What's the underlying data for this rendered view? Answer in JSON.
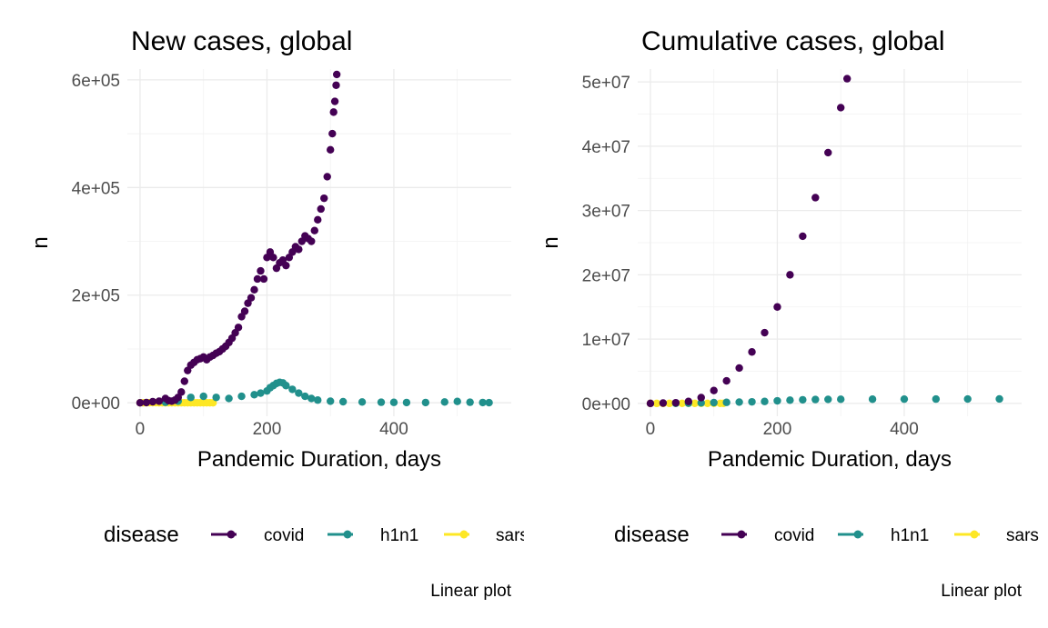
{
  "chart_data": [
    {
      "type": "scatter",
      "title": "New cases, global",
      "xlabel": "Pandemic Duration, days",
      "ylabel": "n",
      "xlim": [
        -20,
        585
      ],
      "ylim": [
        -25000,
        620000
      ],
      "x_ticks": [
        0,
        200,
        400
      ],
      "x_tick_labels": [
        "0",
        "200",
        "400"
      ],
      "y_ticks": [
        0,
        200000,
        400000,
        600000
      ],
      "y_tick_labels": [
        "0e+00",
        "2e+05",
        "4e+05",
        "6e+05"
      ],
      "grid": true,
      "legend": {
        "title": "disease",
        "position": "bottom"
      },
      "caption": "Linear plot",
      "series": [
        {
          "name": "covid",
          "color": "#440154",
          "x": [
            0,
            10,
            20,
            30,
            40,
            45,
            50,
            55,
            60,
            65,
            70,
            75,
            80,
            85,
            90,
            95,
            100,
            105,
            110,
            115,
            120,
            125,
            130,
            135,
            140,
            145,
            150,
            155,
            160,
            165,
            170,
            175,
            180,
            185,
            190,
            195,
            200,
            205,
            210,
            215,
            220,
            225,
            230,
            235,
            240,
            245,
            250,
            255,
            260,
            265,
            270,
            275,
            280,
            285,
            290,
            295,
            300,
            303,
            305,
            307,
            309,
            310
          ],
          "y": [
            0,
            500,
            2000,
            3000,
            8000,
            4000,
            3000,
            5000,
            10000,
            20000,
            40000,
            60000,
            70000,
            75000,
            80000,
            82000,
            85000,
            80000,
            85000,
            88000,
            92000,
            95000,
            100000,
            105000,
            112000,
            120000,
            130000,
            140000,
            160000,
            170000,
            185000,
            195000,
            210000,
            230000,
            245000,
            230000,
            270000,
            280000,
            270000,
            250000,
            260000,
            265000,
            255000,
            270000,
            280000,
            290000,
            285000,
            300000,
            310000,
            305000,
            300000,
            320000,
            340000,
            360000,
            380000,
            420000,
            470000,
            500000,
            540000,
            560000,
            590000,
            610000
          ]
        },
        {
          "name": "h1n1",
          "color": "#21908C",
          "x": [
            40,
            60,
            80,
            100,
            120,
            140,
            160,
            180,
            190,
            200,
            205,
            210,
            215,
            220,
            225,
            230,
            240,
            250,
            260,
            270,
            280,
            300,
            320,
            350,
            380,
            400,
            420,
            450,
            480,
            500,
            520,
            540,
            550
          ],
          "y": [
            1000,
            3000,
            10000,
            12000,
            10000,
            8000,
            12000,
            15000,
            18000,
            22000,
            28000,
            32000,
            36000,
            38000,
            37000,
            32000,
            25000,
            18000,
            12000,
            8000,
            5000,
            3000,
            2000,
            1500,
            1000,
            800,
            500,
            500,
            1500,
            2500,
            1000,
            500,
            200
          ]
        },
        {
          "name": "sars",
          "color": "#FDE725",
          "x": [
            0,
            5,
            10,
            15,
            20,
            25,
            30,
            35,
            40,
            45,
            50,
            55,
            60,
            65,
            70,
            75,
            80,
            85,
            90,
            95,
            100,
            105,
            110,
            115
          ],
          "y": [
            0,
            0,
            100,
            200,
            300,
            200,
            100,
            100,
            50,
            100,
            100,
            80,
            60,
            50,
            40,
            30,
            30,
            20,
            20,
            10,
            10,
            10,
            5,
            0
          ]
        }
      ]
    },
    {
      "type": "scatter",
      "title": "Cumulative cases, global",
      "xlabel": "Pandemic Duration, days",
      "ylabel": "n",
      "xlim": [
        -20,
        585
      ],
      "ylim": [
        -2000000,
        52000000
      ],
      "x_ticks": [
        0,
        200,
        400
      ],
      "x_tick_labels": [
        "0",
        "200",
        "400"
      ],
      "y_ticks": [
        0,
        10000000,
        20000000,
        30000000,
        40000000,
        50000000
      ],
      "y_tick_labels": [
        "0e+00",
        "1e+07",
        "2e+07",
        "3e+07",
        "4e+07",
        "5e+07"
      ],
      "grid": true,
      "legend": {
        "title": "disease",
        "position": "bottom"
      },
      "caption": "Linear plot",
      "series": [
        {
          "name": "covid",
          "color": "#440154",
          "x": [
            0,
            20,
            40,
            60,
            80,
            100,
            120,
            140,
            160,
            180,
            200,
            220,
            240,
            260,
            280,
            300,
            310
          ],
          "y": [
            0,
            50000,
            100000,
            300000,
            900000,
            2000000,
            3500000,
            5500000,
            8000000,
            11000000,
            15000000,
            20000000,
            26000000,
            32000000,
            39000000,
            46000000,
            50500000
          ]
        },
        {
          "name": "h1n1",
          "color": "#21908C",
          "x": [
            40,
            60,
            80,
            100,
            120,
            140,
            160,
            180,
            200,
            220,
            240,
            260,
            280,
            300,
            350,
            400,
            450,
            500,
            550
          ],
          "y": [
            10000,
            30000,
            80000,
            120000,
            160000,
            200000,
            240000,
            300000,
            400000,
            500000,
            560000,
            600000,
            620000,
            640000,
            650000,
            660000,
            670000,
            680000,
            690000
          ]
        },
        {
          "name": "sars",
          "color": "#FDE725",
          "x": [
            0,
            10,
            20,
            30,
            40,
            50,
            60,
            70,
            80,
            90,
            100,
            110,
            115
          ],
          "y": [
            0,
            100,
            500,
            1000,
            2000,
            3000,
            4000,
            5000,
            6000,
            7000,
            7500,
            8000,
            8100
          ]
        }
      ]
    }
  ]
}
